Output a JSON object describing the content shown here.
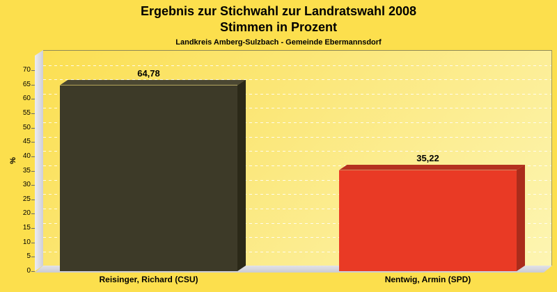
{
  "header": {
    "title_line1": "Ergebnis zur Stichwahl zur Landratswahl 2008",
    "title_line2": "Stimmen in Prozent",
    "subtitle": "Landkreis Amberg-Sulzbach - Gemeinde Ebermannsdorf"
  },
  "chart_data": {
    "type": "bar",
    "title": "Ergebnis zur Stichwahl zur Landratswahl 2008",
    "subtitle": "Stimmen in Prozent",
    "annotation": "Landkreis Amberg-Sulzbach - Gemeinde Ebermannsdorf",
    "categories": [
      "Reisinger, Richard (CSU)",
      "Nentwig, Armin (SPD)"
    ],
    "values": [
      64.78,
      35.22
    ],
    "value_labels": [
      "64,78",
      "35,22"
    ],
    "xlabel": "",
    "ylabel": "%",
    "ylim": [
      0,
      75
    ],
    "yticks": [
      0,
      5,
      10,
      15,
      20,
      25,
      30,
      35,
      40,
      45,
      50,
      55,
      60,
      65,
      70
    ],
    "grid": "horizontal-dashed-white",
    "legend": "none",
    "style": "3d-bars",
    "bars": [
      {
        "category": "Reisinger, Richard (CSU)",
        "value": 64.78,
        "label": "64,78",
        "color_front": "#3d3a28",
        "color_top": "#4b4732",
        "color_side": "#2b2918"
      },
      {
        "category": "Nentwig, Armin (SPD)",
        "value": 35.22,
        "label": "35,22",
        "color_front": "#e93a25",
        "color_top": "#b43120",
        "color_side": "#ab2c1b"
      }
    ],
    "colors": {
      "page_background": "#fcdf4d",
      "plot_gradient_start": "#fbdf52",
      "plot_gradient_end": "#fdf5b2",
      "wall": "#d9d9df",
      "floor": "#d2d2d8",
      "gridline": "#ffffff",
      "text": "#000000"
    }
  }
}
